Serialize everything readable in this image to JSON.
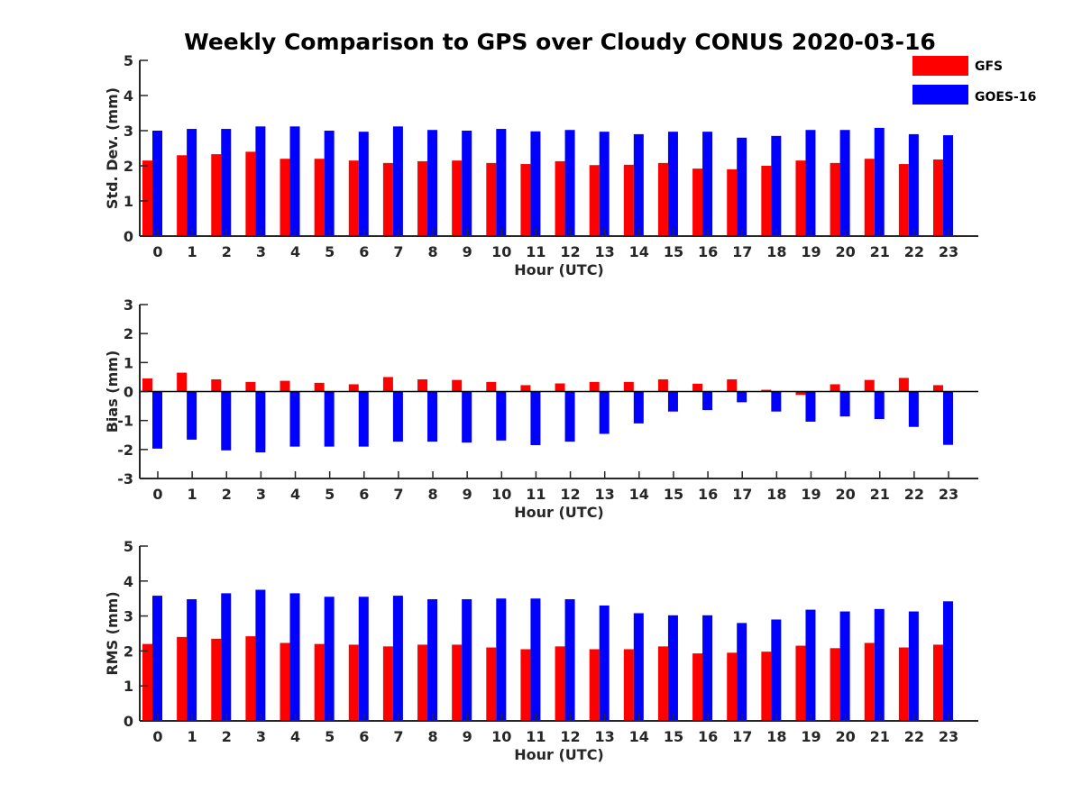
{
  "colors": {
    "GFS": "#ff0000",
    "GOES-16": "#0000ff",
    "axis": "#262626"
  },
  "chart_data": {
    "title": "Weekly Comparison to GPS over Cloudy CONUS 2020-03-16",
    "legend": {
      "placement": "top-right",
      "entries": [
        "GFS",
        "GOES-16"
      ]
    },
    "panels": [
      {
        "type": "bar",
        "ylabel": "Std. Dev. (mm)",
        "xlabel": "Hour (UTC)",
        "ylim": [
          0,
          5
        ],
        "yticks": [
          "0",
          "1",
          "2",
          "3",
          "4",
          "5"
        ],
        "categories": [
          "0",
          "1",
          "2",
          "3",
          "4",
          "5",
          "6",
          "7",
          "8",
          "9",
          "10",
          "11",
          "12",
          "13",
          "14",
          "15",
          "16",
          "17",
          "18",
          "19",
          "20",
          "21",
          "22",
          "23"
        ],
        "series": [
          {
            "name": "GFS",
            "values": [
              2.15,
              2.3,
              2.33,
              2.4,
              2.2,
              2.2,
              2.15,
              2.08,
              2.13,
              2.15,
              2.08,
              2.05,
              2.13,
              2.02,
              2.03,
              2.08,
              1.92,
              1.9,
              2.0,
              2.15,
              2.08,
              2.2,
              2.05,
              2.18
            ]
          },
          {
            "name": "GOES-16",
            "values": [
              3.0,
              3.05,
              3.05,
              3.12,
              3.12,
              3.0,
              2.97,
              3.12,
              3.02,
              3.0,
              3.05,
              2.98,
              3.02,
              2.97,
              2.9,
              2.97,
              2.97,
              2.8,
              2.85,
              3.02,
              3.02,
              3.08,
              2.9,
              2.87
            ]
          }
        ]
      },
      {
        "type": "bar",
        "ylabel": "Bias (mm)",
        "xlabel": "Hour (UTC)",
        "ylim": [
          -3,
          3
        ],
        "yticks": [
          "-3",
          "-2",
          "-1",
          "0",
          "1",
          "2",
          "3"
        ],
        "categories": [
          "0",
          "1",
          "2",
          "3",
          "4",
          "5",
          "6",
          "7",
          "8",
          "9",
          "10",
          "11",
          "12",
          "13",
          "14",
          "15",
          "16",
          "17",
          "18",
          "19",
          "20",
          "21",
          "22",
          "23"
        ],
        "series": [
          {
            "name": "GFS",
            "values": [
              0.45,
              0.65,
              0.42,
              0.33,
              0.37,
              0.3,
              0.25,
              0.5,
              0.42,
              0.4,
              0.33,
              0.22,
              0.28,
              0.33,
              0.33,
              0.42,
              0.27,
              0.42,
              0.06,
              -0.12,
              0.25,
              0.4,
              0.47,
              0.22
            ]
          },
          {
            "name": "GOES-16",
            "values": [
              -1.97,
              -1.66,
              -2.03,
              -2.1,
              -1.9,
              -1.9,
              -1.9,
              -1.73,
              -1.73,
              -1.76,
              -1.69,
              -1.85,
              -1.73,
              -1.46,
              -1.1,
              -0.69,
              -0.64,
              -0.37,
              -0.69,
              -1.04,
              -0.86,
              -0.95,
              -1.22,
              -1.84
            ]
          }
        ]
      },
      {
        "type": "bar",
        "ylabel": "RMS (mm)",
        "xlabel": "Hour (UTC)",
        "ylim": [
          0,
          5
        ],
        "yticks": [
          "0",
          "1",
          "2",
          "3",
          "4",
          "5"
        ],
        "categories": [
          "0",
          "1",
          "2",
          "3",
          "4",
          "5",
          "6",
          "7",
          "8",
          "9",
          "10",
          "11",
          "12",
          "13",
          "14",
          "15",
          "16",
          "17",
          "18",
          "19",
          "20",
          "21",
          "22",
          "23"
        ],
        "series": [
          {
            "name": "GFS",
            "values": [
              2.2,
              2.4,
              2.35,
              2.42,
              2.23,
              2.2,
              2.18,
              2.13,
              2.18,
              2.18,
              2.1,
              2.05,
              2.13,
              2.05,
              2.05,
              2.13,
              1.93,
              1.95,
              1.98,
              2.15,
              2.08,
              2.23,
              2.1,
              2.18
            ]
          },
          {
            "name": "GOES-16",
            "values": [
              3.58,
              3.48,
              3.65,
              3.75,
              3.65,
              3.55,
              3.55,
              3.58,
              3.48,
              3.48,
              3.5,
              3.5,
              3.48,
              3.3,
              3.08,
              3.02,
              3.02,
              2.8,
              2.9,
              3.18,
              3.13,
              3.2,
              3.13,
              3.42
            ]
          }
        ]
      }
    ]
  }
}
